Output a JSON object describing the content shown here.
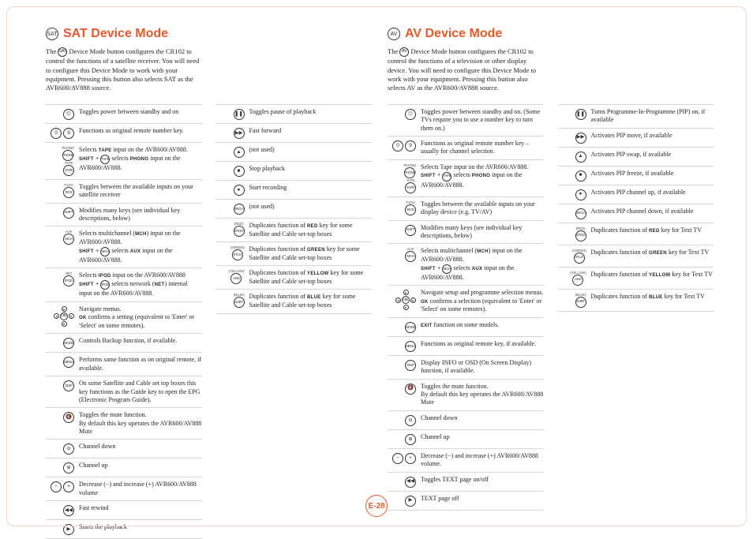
{
  "colors": {
    "accent": "#e85a29",
    "text": "#222222",
    "rule": "#d8d8d8",
    "border": "#333333"
  },
  "font_sizes": {
    "title": 16,
    "intro": 8.5,
    "desc": 8,
    "icon": 6.5
  },
  "page_number": "E-28",
  "sat": {
    "badge": "SAT",
    "title": "SAT Device Mode",
    "intro_pre": "The ",
    "intro_badge": "SAT",
    "intro_post": " Device Mode button configures the CR102 to control the functions of a satellite receiver. You will need to configure this Device Mode to work with your equipment. Pressing this button also selects SAT as the AVR600/AV888 source.",
    "col1": [
      {
        "icons": [
          {
            "g": "⏻"
          }
        ],
        "desc": "Toggles power between standby and on"
      },
      {
        "icons": [
          {
            "g": "0"
          },
          {
            "g": "9"
          }
        ],
        "desc": "Functions as original remote number key."
      },
      {
        "icons": [
          {
            "t": "PHONO"
          },
          {
            "t": "TAPE"
          }
        ],
        "stacked": true,
        "desc": "Selects <small>TAPE</small> input on the AVR600/AV888.<br><small>SHIFT</small> + <span class='icon sm txt'>TAPE</span> selects <small>PHONO</small> input on the AVR600/AV888."
      },
      {
        "icons": [
          {
            "t": "RCR"
          }
        ],
        "sublabel": "TV/AV",
        "desc": "Toggles between the available inputs on your satellite receiver"
      },
      {
        "icons": [
          {
            "t": "SHIFT"
          }
        ],
        "desc": "Modifies many keys (see individual key descriptions, below)"
      },
      {
        "icons": [
          {
            "t": "MCH"
          }
        ],
        "sublabel": "AUX",
        "desc": "Selects multichannel (<small>MCH</small>) input on the AVR600/AV888.<br><small>SHIFT</small> + <span class='icon sm txt'>MCH</span> selects <small>AUX</small> input on the AVR600/AV888."
      },
      {
        "icons": [
          {
            "t": "IPOD"
          }
        ],
        "sublabel": "NET",
        "desc": "Selects <small>IPOD</small> input on the AVR600/AV888<br><small>SHIFT</small> + <span class='icon sm txt'>IPOD</span> selects network (<small>NET</small>) internal input on the AVR600/AV888."
      },
      {
        "navpad": true,
        "desc": "Navigate menus.<br><small>OK</small> confirms a setting (equivalent to 'Enter' or 'Select' on some remotes)."
      },
      {
        "icons": [
          {
            "t": "MODE"
          }
        ],
        "desc": "Controls Backup function, if available."
      },
      {
        "icons": [
          {
            "t": "MENU"
          }
        ],
        "desc": "Performs same function as on original remote, if available."
      },
      {
        "icons": [
          {
            "t": "DISP"
          }
        ],
        "desc": "On some Satellite and Cable set top boxes this key functions as the Guide key to open the EPG (Electronic Program Guide)."
      },
      {
        "icons": [
          {
            "g": "🔇"
          }
        ],
        "desc": "Toggles the mute function.<br>By default this key operates the AVR600/AV888 Mute"
      },
      {
        "icons": [
          {
            "g": "⊖"
          }
        ],
        "desc": "Channel down"
      },
      {
        "icons": [
          {
            "g": "⊕"
          }
        ],
        "desc": "Channel up"
      },
      {
        "icons": [
          {
            "g": "−"
          },
          {
            "g": "+"
          }
        ],
        "desc": "Decrease (−) and increase (+) AVR600/AV888 volume"
      },
      {
        "icons": [
          {
            "g": "◀◀"
          }
        ],
        "desc": "Fast rewind"
      },
      {
        "icons": [
          {
            "g": "▶"
          }
        ],
        "desc": "Starts the playback"
      }
    ],
    "col2": [
      {
        "icons": [
          {
            "g": "❚❚"
          }
        ],
        "desc": "Toggles pause of playback"
      },
      {
        "icons": [
          {
            "g": "▶▶"
          }
        ],
        "desc": "Fast forward"
      },
      {
        "icons": [
          {
            "g": "▲"
          }
        ],
        "desc": "(not used)"
      },
      {
        "icons": [
          {
            "g": "■"
          }
        ],
        "desc": "Stop playback"
      },
      {
        "icons": [
          {
            "g": "●"
          }
        ],
        "desc": "Start recording"
      },
      {
        "icons": [
          {
            "t": "SRCH"
          }
        ],
        "desc": "(not used)"
      },
      {
        "icons": [
          {
            "t": "STDG"
          }
        ],
        "sublabel": "(RED)",
        "desc": "Duplicates function of <small>RED</small> key for some Satellite and Cable set-top boxes"
      },
      {
        "icons": [
          {
            "t": "STLG"
          }
        ],
        "sublabel": "(GREEN)",
        "desc": "Duplicates function of <small>GREEN</small> key for some Satellite and Cable set-top boxes"
      },
      {
        "icons": [
          {
            "t": "ANG"
          }
        ],
        "sublabel": "(YELLOW)",
        "desc": "Duplicates function of <small>YELLOW</small> key for some Satellite and Cable set-top boxes"
      },
      {
        "icons": [
          {
            "t": "SUBT"
          }
        ],
        "sublabel": "(BLUE)",
        "desc": "Duplicates function of <small>BLUE</small> key for some Satellite and Cable set-top boxes"
      }
    ]
  },
  "av": {
    "badge": "AV",
    "title": "AV Device Mode",
    "intro_pre": "The ",
    "intro_badge": "AV",
    "intro_post": " Device Mode button configures the CR102 to control the functions of a television or other display device. You will need to configure this Device Mode to work with your equipment. Pressing this button also selects AV as the AVR600/AV888 source.",
    "col1": [
      {
        "icons": [
          {
            "g": "⏻"
          }
        ],
        "desc": "Toggles power between standby and on. (Some TVs require you to use a number key to turn them on.)"
      },
      {
        "icons": [
          {
            "g": "0"
          },
          {
            "g": "9"
          }
        ],
        "desc": "Functions as original remote number key – usually for channel selection."
      },
      {
        "icons": [
          {
            "t": "PHONO"
          },
          {
            "t": "TAPE"
          }
        ],
        "stacked": true,
        "desc": "Selects Tape input on the AVR600/AV888.<br><small>SHIFT</small> + <span class='icon sm txt'>TAPE</span> selects <small>PHONO</small> input on the AVR600/AV888."
      },
      {
        "icons": [
          {
            "t": "RCR"
          }
        ],
        "sublabel": "TV/AV",
        "desc": "Toggles between the available inputs on your display device (e.g. TV/AV)"
      },
      {
        "icons": [
          {
            "t": "SHIFT"
          }
        ],
        "desc": "Modifies many keys (see individual key descriptions, below)"
      },
      {
        "icons": [
          {
            "t": "MCH"
          }
        ],
        "sublabel": "AUX",
        "desc": "Selects multichannel (<small>MCH</small>) input on the AVR600/AV888.<br><small>SHIFT</small> + <span class='icon sm txt'>MCH</span> selects <small>AUX</small> input on the AVR600/AV888."
      },
      {
        "navpad": true,
        "desc": "Navigate setup and programme selection menus.<br><small>OK</small> confirms a selection (equivalent to 'Enter' or 'Select' on some remotes)."
      },
      {
        "icons": [
          {
            "t": "MODE"
          }
        ],
        "desc": "<small>EXIT</small> function on some models."
      },
      {
        "icons": [
          {
            "t": "MENU"
          }
        ],
        "desc": "Functions as original remote key, if available."
      },
      {
        "icons": [
          {
            "t": "DISP"
          }
        ],
        "desc": "Display INFO or OSD (On Screen Display) function, if available."
      },
      {
        "icons": [
          {
            "g": "🔇"
          }
        ],
        "desc": "Toggles the mute function.<br>By default this key operates the AVR600/AV888 Mute"
      },
      {
        "icons": [
          {
            "g": "⊖"
          }
        ],
        "desc": "Channel down"
      },
      {
        "icons": [
          {
            "g": "⊕"
          }
        ],
        "desc": "Channel up"
      },
      {
        "icons": [
          {
            "g": "−"
          },
          {
            "g": "+"
          }
        ],
        "desc": "Decrease (−) and increase (+) AVR600/AV888 volume."
      },
      {
        "icons": [
          {
            "g": "◀◀"
          }
        ],
        "desc": "Toggles TEXT page on/off"
      },
      {
        "icons": [
          {
            "g": "▶"
          }
        ],
        "desc": "TEXT page off"
      }
    ],
    "col2": [
      {
        "icons": [
          {
            "g": "❚❚"
          }
        ],
        "desc": "Turns Programme-In-Programme (PIP) on, if available"
      },
      {
        "icons": [
          {
            "g": "▶▶"
          }
        ],
        "desc": "Activates PIP move, if available"
      },
      {
        "icons": [
          {
            "g": "▲"
          }
        ],
        "desc": "Activates PIP swap, if available"
      },
      {
        "icons": [
          {
            "g": "■"
          }
        ],
        "desc": "Activates PIP freeze, if available"
      },
      {
        "icons": [
          {
            "g": "●"
          }
        ],
        "desc": "Activates PIP channel up, if available"
      },
      {
        "icons": [
          {
            "t": "SRCH"
          }
        ],
        "desc": "Activates PIP channel down, if available"
      },
      {
        "icons": [
          {
            "t": "STDG"
          }
        ],
        "sublabel": "(RED)",
        "desc": "Duplicates function of <small>RED</small> key for Text TV"
      },
      {
        "icons": [
          {
            "t": "STLG"
          }
        ],
        "sublabel": "(GREEN)",
        "desc": "Duplicates function of <small>GREEN</small> key for Text TV"
      },
      {
        "icons": [
          {
            "t": "ANG"
          }
        ],
        "sublabel": "(YELLOW)",
        "desc": "Duplicates function of <small>YELLOW</small> key for Text TV"
      },
      {
        "icons": [
          {
            "t": "SUBT"
          }
        ],
        "sublabel": "(BLUE)",
        "desc": "Duplicates function of <small>BLUE</small> key for Text TV"
      }
    ]
  }
}
